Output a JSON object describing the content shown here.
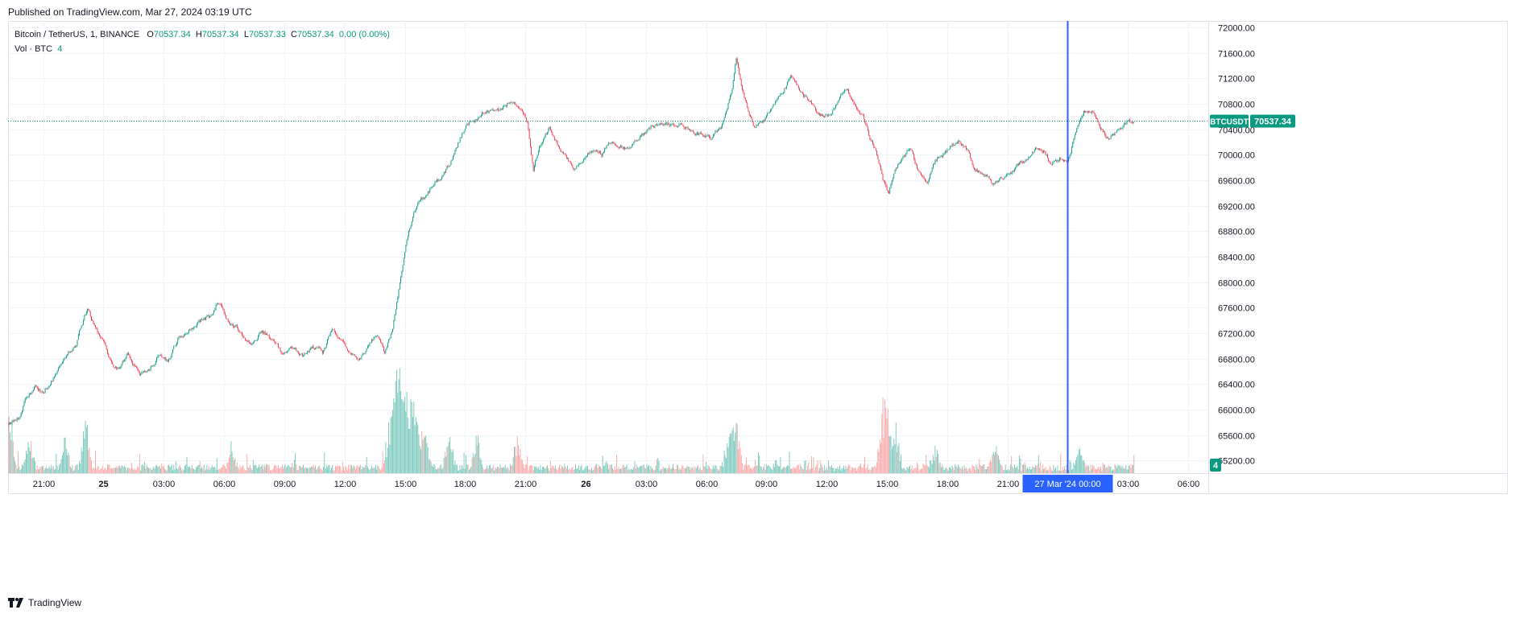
{
  "header": {
    "published": "Published on TradingView.com, Mar 27, 2024 03:19 UTC"
  },
  "legend": {
    "symbol": "Bitcoin / TetherUS, 1, BINANCE",
    "o_label": "O",
    "o_value": "70537.34",
    "h_label": "H",
    "h_value": "70537.34",
    "l_label": "L",
    "l_value": "70537.33",
    "c_label": "C",
    "c_value": "70537.34",
    "change": "0.00 (0.00%)",
    "vol_label": "Vol · BTC",
    "vol_value": "4"
  },
  "footer": {
    "brand": "TradingView"
  },
  "colors": {
    "up": "#089981",
    "down": "#F23645",
    "crosshair": "#2962FF",
    "grid": "#F0F3FA",
    "price_line": "#089981",
    "up_vol": "#7CC9BD",
    "down_vol": "#F7A9A8"
  },
  "chart_data": {
    "type": "candlestick",
    "symbol": "BTCUSDT",
    "interval": "1",
    "exchange": "BINANCE",
    "last_price": 70537.34,
    "last_price_label": "70537.34",
    "price_tag_label": "BTCUSDT",
    "volume_tag_label": "4",
    "y_ticks": [
      "72000.00",
      "71600.00",
      "71200.00",
      "70800.00",
      "70400.00",
      "70000.00",
      "69600.00",
      "69200.00",
      "68800.00",
      "68400.00",
      "68000.00",
      "67600.00",
      "67200.00",
      "66800.00",
      "66400.00",
      "66000.00",
      "65600.00",
      "65200.00"
    ],
    "ylim": [
      65000,
      72100
    ],
    "x_ticks": [
      {
        "label": "21:00",
        "h": 21
      },
      {
        "label": "25",
        "h": 24
      },
      {
        "label": "03:00",
        "h": 27
      },
      {
        "label": "06:00",
        "h": 30
      },
      {
        "label": "09:00",
        "h": 33
      },
      {
        "label": "12:00",
        "h": 36
      },
      {
        "label": "15:00",
        "h": 39
      },
      {
        "label": "18:00",
        "h": 42
      },
      {
        "label": "21:00",
        "h": 45
      },
      {
        "label": "26",
        "h": 48
      },
      {
        "label": "03:00",
        "h": 51
      },
      {
        "label": "06:00",
        "h": 54
      },
      {
        "label": "09:00",
        "h": 57
      },
      {
        "label": "12:00",
        "h": 60
      },
      {
        "label": "15:00",
        "h": 63
      },
      {
        "label": "18:00",
        "h": 66
      },
      {
        "label": "21:00",
        "h": 69
      },
      {
        "label": "03:00",
        "h": 75
      },
      {
        "label": "06:00",
        "h": 78
      }
    ],
    "x_range_hours": [
      19.25,
      79.0
    ],
    "crosshair": {
      "h": 72,
      "label": "27 Mar '24  00:00"
    },
    "series_end_h": 75.3,
    "price_path": [
      [
        19.25,
        65750
      ],
      [
        19.8,
        65900
      ],
      [
        20.2,
        66200
      ],
      [
        20.6,
        66350
      ],
      [
        21.0,
        66250
      ],
      [
        21.5,
        66500
      ],
      [
        22.0,
        66800
      ],
      [
        22.6,
        67000
      ],
      [
        23.2,
        67600
      ],
      [
        23.6,
        67250
      ],
      [
        24.0,
        67050
      ],
      [
        24.4,
        66700
      ],
      [
        24.8,
        66600
      ],
      [
        25.2,
        66850
      ],
      [
        25.8,
        66550
      ],
      [
        26.3,
        66650
      ],
      [
        26.7,
        66800
      ],
      [
        27.2,
        66750
      ],
      [
        27.7,
        67100
      ],
      [
        28.2,
        67250
      ],
      [
        28.7,
        67350
      ],
      [
        29.3,
        67450
      ],
      [
        29.7,
        67700
      ],
      [
        30.2,
        67400
      ],
      [
        30.6,
        67300
      ],
      [
        31.0,
        67100
      ],
      [
        31.4,
        67000
      ],
      [
        31.9,
        67250
      ],
      [
        32.4,
        67100
      ],
      [
        32.9,
        66900
      ],
      [
        33.4,
        66950
      ],
      [
        33.9,
        66850
      ],
      [
        34.4,
        67000
      ],
      [
        34.9,
        66900
      ],
      [
        35.4,
        67300
      ],
      [
        35.9,
        67050
      ],
      [
        36.4,
        66850
      ],
      [
        36.8,
        66800
      ],
      [
        37.2,
        67000
      ],
      [
        37.6,
        67200
      ],
      [
        38.0,
        66900
      ],
      [
        38.4,
        67300
      ],
      [
        38.8,
        68100
      ],
      [
        39.2,
        68800
      ],
      [
        39.6,
        69200
      ],
      [
        40.0,
        69350
      ],
      [
        40.5,
        69550
      ],
      [
        40.9,
        69650
      ],
      [
        41.3,
        69900
      ],
      [
        41.7,
        70200
      ],
      [
        42.1,
        70500
      ],
      [
        42.5,
        70550
      ],
      [
        43.0,
        70700
      ],
      [
        43.5,
        70650
      ],
      [
        43.9,
        70750
      ],
      [
        44.3,
        70850
      ],
      [
        44.8,
        70750
      ],
      [
        45.1,
        70500
      ],
      [
        45.4,
        69800
      ],
      [
        45.8,
        70200
      ],
      [
        46.2,
        70400
      ],
      [
        46.6,
        70150
      ],
      [
        47.0,
        70000
      ],
      [
        47.4,
        69800
      ],
      [
        47.8,
        69900
      ],
      [
        48.3,
        70050
      ],
      [
        48.8,
        70000
      ],
      [
        49.2,
        70200
      ],
      [
        49.7,
        70150
      ],
      [
        50.2,
        70100
      ],
      [
        50.8,
        70300
      ],
      [
        51.3,
        70450
      ],
      [
        51.8,
        70500
      ],
      [
        52.3,
        70450
      ],
      [
        52.8,
        70500
      ],
      [
        53.3,
        70350
      ],
      [
        53.8,
        70300
      ],
      [
        54.3,
        70250
      ],
      [
        54.7,
        70400
      ],
      [
        55.0,
        70700
      ],
      [
        55.3,
        71050
      ],
      [
        55.5,
        71500
      ],
      [
        55.8,
        71000
      ],
      [
        56.1,
        70700
      ],
      [
        56.4,
        70450
      ],
      [
        56.8,
        70500
      ],
      [
        57.3,
        70700
      ],
      [
        57.7,
        70900
      ],
      [
        58.2,
        71200
      ],
      [
        58.7,
        71000
      ],
      [
        59.2,
        70800
      ],
      [
        59.7,
        70650
      ],
      [
        60.2,
        70600
      ],
      [
        60.6,
        70900
      ],
      [
        61.0,
        71000
      ],
      [
        61.4,
        70800
      ],
      [
        61.8,
        70600
      ],
      [
        62.1,
        70300
      ],
      [
        62.4,
        70100
      ],
      [
        62.8,
        69600
      ],
      [
        63.1,
        69400
      ],
      [
        63.4,
        69700
      ],
      [
        63.8,
        70000
      ],
      [
        64.2,
        70100
      ],
      [
        64.6,
        69700
      ],
      [
        65.0,
        69600
      ],
      [
        65.4,
        69900
      ],
      [
        65.8,
        70000
      ],
      [
        66.2,
        70100
      ],
      [
        66.6,
        70200
      ],
      [
        67.0,
        70050
      ],
      [
        67.4,
        69750
      ],
      [
        67.8,
        69700
      ],
      [
        68.3,
        69550
      ],
      [
        68.8,
        69650
      ],
      [
        69.2,
        69700
      ],
      [
        69.6,
        69850
      ],
      [
        70.0,
        69950
      ],
      [
        70.4,
        70100
      ],
      [
        70.8,
        70050
      ],
      [
        71.2,
        69850
      ],
      [
        71.6,
        69950
      ],
      [
        72.0,
        69950
      ],
      [
        72.4,
        70300
      ],
      [
        72.8,
        70650
      ],
      [
        73.2,
        70700
      ],
      [
        73.6,
        70450
      ],
      [
        74.0,
        70250
      ],
      [
        74.4,
        70350
      ],
      [
        74.8,
        70500
      ],
      [
        75.3,
        70537
      ]
    ],
    "volume_spikes": [
      {
        "h": 19.3,
        "v": 95
      },
      {
        "h": 20.3,
        "v": 45
      },
      {
        "h": 22.1,
        "v": 40
      },
      {
        "h": 23.1,
        "v": 68
      },
      {
        "h": 30.4,
        "v": 25
      },
      {
        "h": 38.2,
        "v": 42
      },
      {
        "h": 38.5,
        "v": 90
      },
      {
        "h": 38.7,
        "v": 120
      },
      {
        "h": 39.0,
        "v": 80
      },
      {
        "h": 39.3,
        "v": 100
      },
      {
        "h": 39.6,
        "v": 65
      },
      {
        "h": 40.0,
        "v": 55
      },
      {
        "h": 41.2,
        "v": 48
      },
      {
        "h": 42.6,
        "v": 50
      },
      {
        "h": 44.6,
        "v": 42
      },
      {
        "h": 55.2,
        "v": 55
      },
      {
        "h": 55.5,
        "v": 60
      },
      {
        "h": 62.8,
        "v": 70
      },
      {
        "h": 63.0,
        "v": 58
      },
      {
        "h": 63.4,
        "v": 55
      },
      {
        "h": 65.4,
        "v": 30
      },
      {
        "h": 68.4,
        "v": 30
      },
      {
        "h": 72.6,
        "v": 28
      }
    ]
  }
}
